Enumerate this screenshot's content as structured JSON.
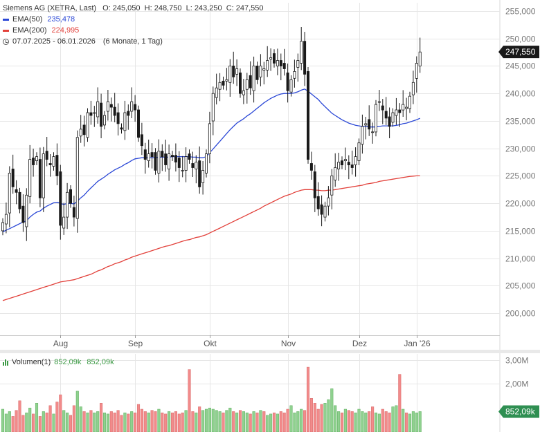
{
  "legend": {
    "instrument": "Siemens AG (XETRA, Last)",
    "ohlc": "O: 245,050  H: 248,750  L: 243,250  C: 247,550",
    "ema50_label": "EMA(50)",
    "ema50_value": "235,478",
    "ema200_label": "EMA(200)",
    "ema200_value": "224,995",
    "range_dates": "07.07.2025 - 06.01.2026",
    "range_period": "(6 Monate, 1 Tag)",
    "clock_icon": "clock-icon"
  },
  "volume_legend": {
    "label": "Volumen(1)",
    "value": "852,09k",
    "value_repeat": "852,09k",
    "icon": "bar-chart-icon"
  },
  "colors": {
    "up": "#3c9a45",
    "down": "#1a1a1a",
    "ema50": "#2a47d6",
    "ema200": "#e2403a",
    "vol_up": "#8fd18f",
    "vol_down": "#f28b8b",
    "grid": "#e6e6e6",
    "price_badge": "#1a1a1a"
  },
  "chart_data": [
    {
      "type": "candlestick",
      "title": "Siemens AG (XETRA, Last)",
      "x_tick_labels": [
        "Aug",
        "Sep",
        "Okt",
        "Nov",
        "Dez",
        "Jan '26"
      ],
      "x_tick_index": [
        17,
        39,
        61,
        84,
        105,
        122
      ],
      "y_tick_labels": [
        "200,000",
        "205,000",
        "210,000",
        "215,000",
        "220,000",
        "225,000",
        "230,000",
        "235,000",
        "240,000",
        "245,000",
        "250,000",
        "255,000"
      ],
      "y_ticks": [
        200,
        205,
        210,
        215,
        220,
        225,
        230,
        235,
        240,
        245,
        250,
        255
      ],
      "ylim": [
        196,
        256.5
      ],
      "last_price_label": "247,550",
      "last_price": 247.55,
      "grid": true,
      "close": [
        216.5,
        218.0,
        225.5,
        223.0,
        222.0,
        219.0,
        216.5,
        221.5,
        228.0,
        227.0,
        228.5,
        221.0,
        229.0,
        228.0,
        227.0,
        228.5,
        225.0,
        216.0,
        217.5,
        222.0,
        220.0,
        217.5,
        232.0,
        233.5,
        232.5,
        236.5,
        236.0,
        236.5,
        238.5,
        234.0,
        236.0,
        238.5,
        237.5,
        236.0,
        234.5,
        233.5,
        236.5,
        236.0,
        238.5,
        237.0,
        232.0,
        230.5,
        228.0,
        229.0,
        228.5,
        226.0,
        229.5,
        228.5,
        227.0,
        229.0,
        228.5,
        227.5,
        226.5,
        226.0,
        228.5,
        228.0,
        226.5,
        227.5,
        223.0,
        226.0,
        229.0,
        234.5,
        240.0,
        241.0,
        242.0,
        241.5,
        242.5,
        245.0,
        243.0,
        244.5,
        240.0,
        240.5,
        242.5,
        241.0,
        245.0,
        242.5,
        245.0,
        244.5,
        246.0,
        246.5,
        245.5,
        246.0,
        245.0,
        244.5,
        240.5,
        242.5,
        244.0,
        246.0,
        249.5,
        243.5,
        228.0,
        226.0,
        221.0,
        219.0,
        218.0,
        219.5,
        221.0,
        225.0,
        226.5,
        227.5,
        227.0,
        228.0,
        227.0,
        226.5,
        228.5,
        231.0,
        234.0,
        234.5,
        233.5,
        233.0,
        238.0,
        238.5,
        237.0,
        235.5,
        234.0,
        236.5,
        237.0,
        236.5,
        238.0,
        237.5,
        239.5,
        242.0,
        245.5,
        247.55
      ],
      "ema50": [
        214.8,
        215.1,
        215.4,
        215.7,
        216.0,
        216.3,
        216.6,
        216.8,
        217.5,
        218.0,
        218.4,
        218.6,
        219.1,
        219.5,
        219.8,
        220.1,
        220.2,
        220.0,
        219.8,
        220.0,
        220.0,
        219.9,
        220.4,
        221.0,
        221.5,
        222.2,
        222.8,
        223.4,
        224.0,
        224.4,
        224.8,
        225.3,
        225.7,
        226.1,
        226.4,
        226.7,
        227.1,
        227.4,
        227.8,
        228.1,
        228.2,
        228.3,
        228.3,
        228.3,
        228.3,
        228.3,
        228.4,
        228.4,
        228.4,
        228.4,
        228.5,
        228.5,
        228.5,
        228.5,
        228.5,
        228.5,
        228.4,
        228.4,
        228.3,
        228.3,
        228.5,
        229.2,
        229.9,
        230.6,
        231.3,
        232.0,
        232.7,
        233.4,
        234.0,
        234.6,
        235.0,
        235.4,
        235.9,
        236.3,
        236.8,
        237.3,
        237.8,
        238.3,
        238.7,
        239.1,
        239.4,
        239.7,
        239.9,
        240.0,
        240.0,
        240.0,
        240.1,
        240.3,
        240.6,
        240.8,
        240.4,
        239.9,
        239.4,
        238.9,
        238.2,
        237.6,
        237.0,
        236.4,
        236.0,
        235.6,
        235.2,
        234.9,
        234.6,
        234.4,
        234.2,
        234.1,
        234.0,
        234.0,
        233.9,
        233.9,
        233.9,
        234.0,
        234.1,
        234.1,
        234.1,
        234.1,
        234.2,
        234.3,
        234.5,
        234.6,
        234.8,
        235.0,
        235.2,
        235.48
      ],
      "ema200": [
        202.3,
        202.5,
        202.7,
        202.9,
        203.1,
        203.3,
        203.5,
        203.7,
        203.9,
        204.1,
        204.3,
        204.5,
        204.7,
        204.9,
        205.1,
        205.3,
        205.5,
        205.7,
        205.8,
        205.9,
        206.0,
        206.1,
        206.3,
        206.5,
        206.7,
        206.9,
        207.1,
        207.4,
        207.7,
        207.9,
        208.2,
        208.5,
        208.7,
        209.0,
        209.2,
        209.4,
        209.7,
        209.9,
        210.2,
        210.4,
        210.6,
        210.8,
        211.0,
        211.2,
        211.4,
        211.6,
        211.8,
        212.0,
        212.2,
        212.3,
        212.5,
        212.7,
        212.9,
        213.1,
        213.3,
        213.4,
        213.6,
        213.8,
        213.9,
        214.1,
        214.3,
        214.6,
        214.9,
        215.2,
        215.5,
        215.8,
        216.1,
        216.4,
        216.7,
        217.0,
        217.3,
        217.6,
        217.9,
        218.2,
        218.5,
        218.8,
        219.1,
        219.5,
        219.8,
        220.1,
        220.4,
        220.7,
        221.0,
        221.3,
        221.5,
        221.7,
        222.0,
        222.2,
        222.4,
        222.5,
        222.5,
        222.5,
        222.4,
        222.4,
        222.3,
        222.3,
        222.4,
        222.4,
        222.5,
        222.6,
        222.7,
        222.8,
        222.9,
        223.0,
        223.1,
        223.2,
        223.3,
        223.5,
        223.6,
        223.7,
        223.8,
        224.0,
        224.1,
        224.2,
        224.3,
        224.4,
        224.5,
        224.6,
        224.7,
        224.8,
        224.9,
        224.95,
        225.0,
        225.0
      ]
    },
    {
      "type": "bar",
      "title": "Volumen(1)",
      "y_tick_labels": [
        "2,00M",
        "3,00M"
      ],
      "y_ticks": [
        2.0,
        3.0
      ],
      "ylim": [
        0,
        3.25
      ],
      "last_value_label": "852,09k",
      "unit": "M",
      "values": [
        0.95,
        0.75,
        0.85,
        0.65,
        0.9,
        1.3,
        0.7,
        0.8,
        1.0,
        0.75,
        1.2,
        0.65,
        0.85,
        0.8,
        1.1,
        0.75,
        1.25,
        1.55,
        0.9,
        0.8,
        0.7,
        1.1,
        1.7,
        1.05,
        0.85,
        0.8,
        0.9,
        0.8,
        0.85,
        1.2,
        0.8,
        0.75,
        0.85,
        0.8,
        0.9,
        0.7,
        0.8,
        0.75,
        0.85,
        0.8,
        1.15,
        0.95,
        0.85,
        0.8,
        0.9,
        0.85,
        0.95,
        0.8,
        0.75,
        0.85,
        0.8,
        0.85,
        0.75,
        0.8,
        0.9,
        2.6,
        0.85,
        0.8,
        1.05,
        0.9,
        0.95,
        1.0,
        0.95,
        0.9,
        0.85,
        0.8,
        0.9,
        1.0,
        0.85,
        0.8,
        0.9,
        0.85,
        0.8,
        0.75,
        0.85,
        0.8,
        0.9,
        0.85,
        0.7,
        0.75,
        0.8,
        0.75,
        0.85,
        0.8,
        0.95,
        1.1,
        0.8,
        0.85,
        0.95,
        0.9,
        2.7,
        1.4,
        1.2,
        0.95,
        1.15,
        1.2,
        1.35,
        1.8,
        1.1,
        0.85,
        0.8,
        0.95,
        0.9,
        0.85,
        0.8,
        0.95,
        0.85,
        0.8,
        0.85,
        1.05,
        0.8,
        0.75,
        0.95,
        0.85,
        0.8,
        1.05,
        1.1,
        2.4,
        0.95,
        0.8,
        0.75,
        0.85,
        0.8,
        0.85
      ]
    }
  ]
}
